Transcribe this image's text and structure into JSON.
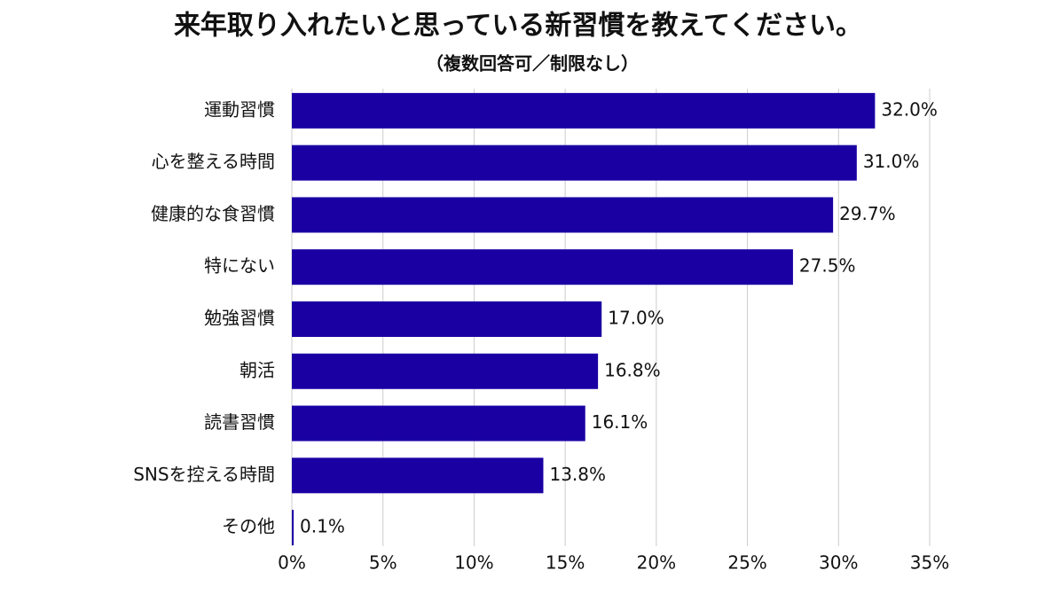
{
  "chart_data": {
    "type": "hbar",
    "title": "来年取り入れたいと思っている新習慣を教えてください。",
    "subtitle": "（複数回答可／制限なし）",
    "categories": [
      "運動習慣",
      "心を整える時間",
      "健康的な食習慣",
      "特にない",
      "勉強習慣",
      "朝活",
      "読書習慣",
      "SNSを控える時間",
      "その他"
    ],
    "values": [
      32.0,
      31.0,
      29.7,
      27.5,
      17.0,
      16.8,
      16.1,
      13.8,
      0.1
    ],
    "value_labels": [
      "32.0%",
      "31.0%",
      "29.7%",
      "27.5%",
      "17.0%",
      "16.8%",
      "16.1%",
      "13.8%",
      "0.1%"
    ],
    "color": "#1a00a3",
    "xlim": [
      0,
      35
    ],
    "xticks": [
      {
        "value": 0,
        "label": "0%"
      },
      {
        "value": 5,
        "label": "5%"
      },
      {
        "value": 10,
        "label": "10%"
      },
      {
        "value": 15,
        "label": "15%"
      },
      {
        "value": 20,
        "label": "20%"
      },
      {
        "value": 25,
        "label": "25%"
      },
      {
        "value": 30,
        "label": "30%"
      },
      {
        "value": 35,
        "label": "35%"
      }
    ],
    "grid": true
  }
}
